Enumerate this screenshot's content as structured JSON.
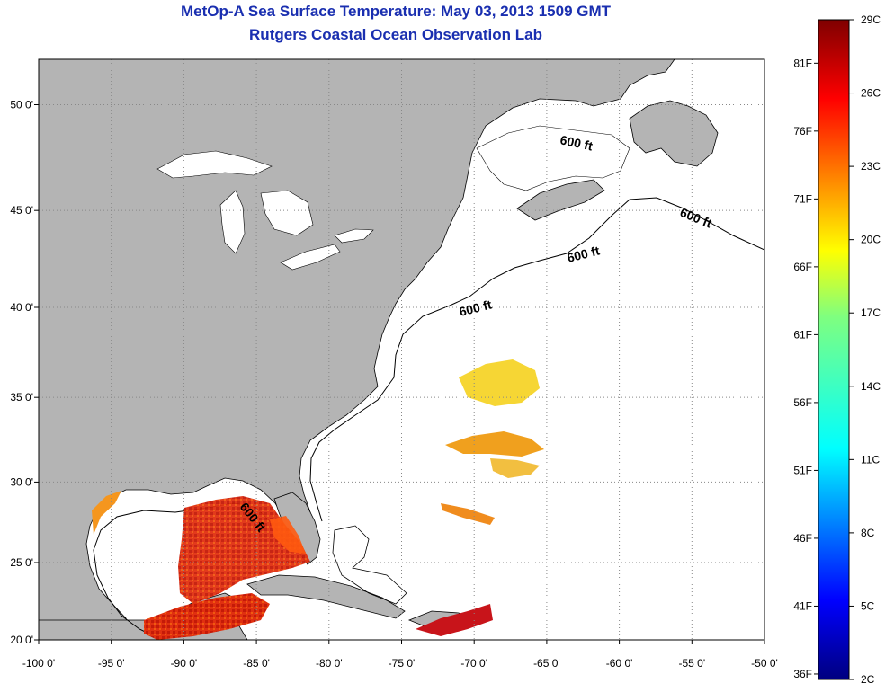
{
  "title_line1": "MetOp-A Sea Surface Temperature:  May 03, 2013 1509 GMT",
  "title_line2": "Rutgers Coastal Ocean Observation Lab",
  "x_ticks": [
    "-100 0'",
    "-95 0'",
    "-90 0'",
    "-85 0'",
    "-80 0'",
    "-75 0'",
    "-70 0'",
    "-65 0'",
    "-60 0'",
    "-55 0'",
    "-50 0'"
  ],
  "y_ticks": [
    "50 0'",
    "45 0'",
    "40 0'",
    "35 0'",
    "30 0'",
    "25 0'",
    "20 0'"
  ],
  "isobath_label": "600 ft",
  "colors": {
    "land": "#b4b4b4",
    "ocean": "#ffffff",
    "title": "#1a2fb0",
    "grid": "#888888"
  },
  "colorbar": {
    "fahrenheit_labels": [
      "81F",
      "76F",
      "71F",
      "66F",
      "61F",
      "56F",
      "51F",
      "46F",
      "41F",
      "36F"
    ],
    "celsius_labels": [
      "29C",
      "26C",
      "23C",
      "20C",
      "17C",
      "14C",
      "11C",
      "8C",
      "5C",
      "2C"
    ],
    "range_c": [
      2,
      29
    ],
    "colormap": "jet"
  },
  "map_extent": {
    "lon": [
      -100,
      -50
    ],
    "lat": [
      20,
      52
    ]
  }
}
